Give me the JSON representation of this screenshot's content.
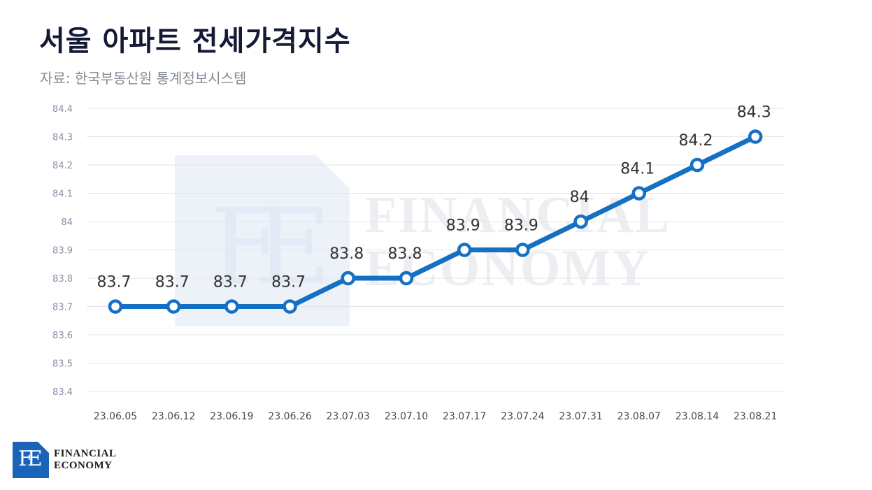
{
  "header": {
    "title": "서울 아파트 전세가격지수",
    "source": "자료: 한국부동산원 통계정보시스템"
  },
  "watermark": {
    "letters": "FE",
    "line1": "FINANCIAL",
    "line2": "ECONOMY"
  },
  "logo": {
    "letters": "FE",
    "line1": "FINANCIAL",
    "line2": "ECONOMY"
  },
  "colors": {
    "line": "#1570c4",
    "grid": "#e3e5ea",
    "axis_text": "#8891a8",
    "label_text": "#333333",
    "watermark": "#e9f0f8"
  },
  "chart_data": {
    "type": "line",
    "title": "서울 아파트 전세가격지수",
    "categories": [
      "23.06.05",
      "23.06.12",
      "23.06.19",
      "23.06.26",
      "23.07.03",
      "23.07.10",
      "23.07.17",
      "23.07.24",
      "23.07.31",
      "23.08.07",
      "23.08.14",
      "23.08.21"
    ],
    "series": [
      {
        "values": [
          83.7,
          83.7,
          83.7,
          83.7,
          83.8,
          83.8,
          83.9,
          83.9,
          84,
          84.1,
          84.2,
          84.3
        ]
      }
    ],
    "data_labels": [
      "83.7",
      "83.7",
      "83.7",
      "83.7",
      "83.8",
      "83.8",
      "83.9",
      "83.9",
      "84",
      "84.1",
      "84.2",
      "84.3"
    ],
    "y_ticks": [
      "84.4",
      "84.3",
      "84.2",
      "84.1",
      "84",
      "83.9",
      "83.8",
      "83.7",
      "83.6",
      "83.5",
      "83.4"
    ],
    "ylim": [
      83.4,
      84.4
    ],
    "grid": true,
    "legend": "none"
  }
}
